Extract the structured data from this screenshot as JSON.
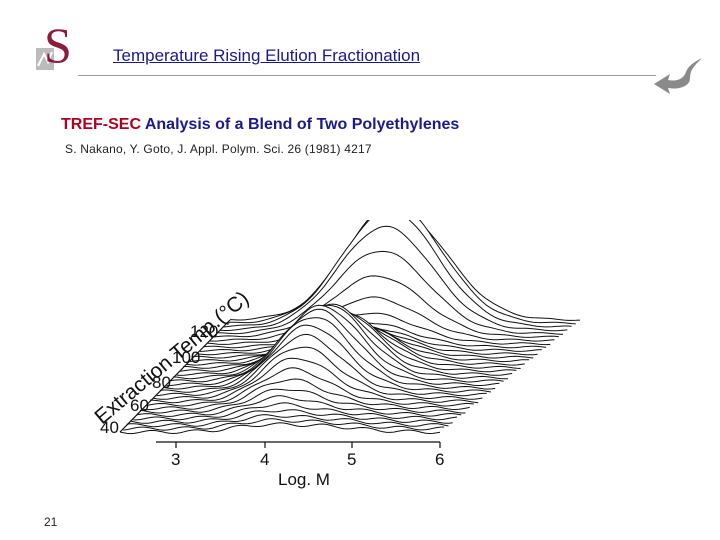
{
  "slide": {
    "title": "Temperature Rising Elution Fractionation",
    "heading_accent": "TREF-SEC",
    "heading_rest": " Analysis of a Blend of Two Polyethylenes",
    "citation": "S. Nakano, Y. Goto, J. Appl. Polym. Sci. 26 (1981) 4217",
    "page_number": "21"
  },
  "logo": {
    "letter": "S",
    "color": "#8b1c3a"
  },
  "figure": {
    "x_label": "Log. M",
    "x_ticks": [
      "3",
      "4",
      "5",
      "6"
    ],
    "depth_label": "Extraction Temp.(°C)",
    "depth_ticks": [
      "40",
      "60",
      "80",
      "100",
      "120"
    ]
  }
}
